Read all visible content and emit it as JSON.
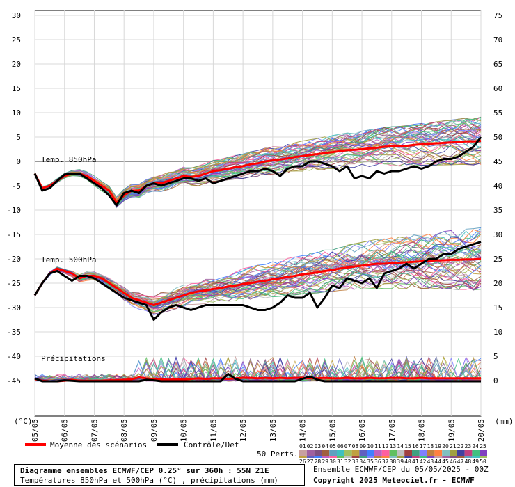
{
  "chart_data": {
    "type": "line",
    "title": "Diagramme ensembles ECMWF/CEP 0.25° sur 360h : 55N 21E",
    "subtitle": "Températures 850hPa et 500hPa (°C) , précipitations (mm)",
    "run": "Ensemble ECMWF/CEP du 05/05/2025 - 00Z",
    "copyright": "Copyright 2025 Meteociel.fr - ECMWF",
    "left_unit": "(°C)",
    "right_unit": "(mm)",
    "x_dates": [
      "05/05",
      "06/05",
      "07/05",
      "08/05",
      "09/05",
      "10/05",
      "11/05",
      "12/05",
      "13/05",
      "14/05",
      "15/05",
      "16/05",
      "17/05",
      "18/05",
      "19/05",
      "20/05"
    ],
    "x_range_hours": [
      0,
      360
    ],
    "left_axis": {
      "range": [
        -45,
        30
      ],
      "ticks": [
        30,
        25,
        20,
        15,
        10,
        5,
        0,
        -5,
        -10,
        -15,
        -20,
        -25,
        -30,
        -35,
        -40,
        -45
      ]
    },
    "right_axis": {
      "ticks": [
        75,
        70,
        65,
        60,
        55,
        50,
        45,
        40,
        35,
        30,
        25,
        20,
        15,
        10,
        5,
        0
      ]
    },
    "grid": true,
    "panel_labels": [
      "Temp. 850hPa",
      "Temp. 500hPa",
      "Précipitations"
    ],
    "legend": {
      "mean_label": "Moyenne des scénarios",
      "control_label": "Contrôle/Det",
      "members_label": "50 Perts.",
      "member_numbers_top": [
        "01",
        "02",
        "03",
        "04",
        "05",
        "06",
        "07",
        "08",
        "09",
        "10",
        "11",
        "12",
        "13",
        "14",
        "15",
        "16",
        "17",
        "18",
        "19",
        "20",
        "21",
        "22",
        "23",
        "24",
        "25"
      ],
      "member_numbers_bottom": [
        "26",
        "27",
        "28",
        "29",
        "30",
        "31",
        "32",
        "33",
        "34",
        "35",
        "36",
        "37",
        "38",
        "39",
        "40",
        "41",
        "42",
        "43",
        "44",
        "45",
        "46",
        "47",
        "48",
        "49",
        "50"
      ]
    },
    "colors": {
      "mean": "#ff0000",
      "control": "#000000",
      "members": [
        "#c8a0a0",
        "#a060a0",
        "#805080",
        "#a06040",
        "#60a0c0",
        "#40c0c0",
        "#a0c060",
        "#c0a040",
        "#6060c0",
        "#4080ff",
        "#c060c0",
        "#ff60a0",
        "#60c060",
        "#c0c0c0",
        "#a04040",
        "#40a080",
        "#8080ff",
        "#c08040",
        "#ff8040",
        "#80c0c0",
        "#a0a040",
        "#4040a0",
        "#c04080",
        "#40c080",
        "#8040c0"
      ]
    },
    "series": [
      {
        "name": "Moyenne des scénarios",
        "panel": "t850",
        "x_hours": [
          0,
          6,
          12,
          18,
          24,
          30,
          36,
          42,
          48,
          54,
          60,
          66,
          72,
          78,
          84,
          90,
          96,
          102,
          108,
          114,
          120,
          126,
          132,
          138,
          144,
          150,
          156,
          162,
          168,
          174,
          180,
          186,
          192,
          198,
          204,
          210,
          216,
          222,
          228,
          234,
          240,
          246,
          252,
          258,
          264,
          270,
          276,
          282,
          288,
          294,
          300,
          306,
          312,
          318,
          324,
          330,
          336,
          342,
          348,
          354,
          360
        ],
        "values": [
          -2.5,
          -5.5,
          -5,
          -4,
          -3,
          -2.5,
          -2.5,
          -3,
          -4,
          -5,
          -6,
          -8.5,
          -7,
          -6,
          -6,
          -5,
          -4.5,
          -4.5,
          -4,
          -3.5,
          -3,
          -3.2,
          -3,
          -2.5,
          -2,
          -1.8,
          -1.5,
          -1.2,
          -1,
          -0.6,
          -0.4,
          0,
          0.2,
          0.4,
          0.6,
          0.9,
          1.1,
          1.3,
          1.5,
          1.7,
          1.9,
          2.1,
          2.3,
          2.4,
          2.5,
          2.7,
          2.8,
          3,
          3.1,
          3.1,
          3.2,
          3.4,
          3.5,
          3.6,
          3.7,
          3.8,
          3.9,
          4,
          4.1,
          4.1,
          4.2
        ]
      },
      {
        "name": "Contrôle/Det",
        "panel": "t850",
        "x_hours": [
          0,
          6,
          12,
          18,
          24,
          30,
          36,
          42,
          48,
          54,
          60,
          66,
          72,
          78,
          84,
          90,
          96,
          102,
          108,
          114,
          120,
          126,
          132,
          138,
          144,
          150,
          156,
          162,
          168,
          174,
          180,
          186,
          192,
          198,
          204,
          210,
          216,
          222,
          228,
          234,
          240,
          246,
          252,
          258,
          264,
          270,
          276,
          282,
          288,
          294,
          300,
          306,
          312,
          318,
          324,
          330,
          336,
          342,
          348,
          354,
          360
        ],
        "values": [
          -2.5,
          -6,
          -5.5,
          -4,
          -2.7,
          -2.5,
          -2.5,
          -3.5,
          -4.5,
          -5.5,
          -7,
          -9,
          -6.5,
          -6,
          -6.5,
          -5,
          -4.5,
          -5,
          -4.5,
          -4,
          -3.5,
          -3.5,
          -4,
          -3.5,
          -4.5,
          -4,
          -3.5,
          -3,
          -2.5,
          -2,
          -2,
          -1.5,
          -2,
          -3,
          -1.5,
          -1,
          -1,
          0,
          0,
          -0.5,
          -1,
          -2,
          -1,
          -3.5,
          -3,
          -3.5,
          -2,
          -2.5,
          -2,
          -2,
          -1.5,
          -1,
          -1.5,
          -1,
          0,
          0.5,
          0.5,
          1,
          2,
          3,
          5
        ]
      },
      {
        "name": "Moyenne des scénarios",
        "panel": "t500",
        "x_hours": [
          0,
          6,
          12,
          18,
          24,
          30,
          36,
          42,
          48,
          54,
          60,
          66,
          72,
          78,
          84,
          90,
          96,
          102,
          108,
          114,
          120,
          126,
          132,
          138,
          144,
          150,
          156,
          162,
          168,
          174,
          180,
          186,
          192,
          198,
          204,
          210,
          216,
          222,
          228,
          234,
          240,
          246,
          252,
          258,
          264,
          270,
          276,
          282,
          288,
          294,
          300,
          306,
          312,
          318,
          324,
          330,
          336,
          342,
          348,
          354,
          360
        ],
        "values": [
          -27.5,
          -25,
          -23,
          -22,
          -22.5,
          -23,
          -24,
          -23.5,
          -23.5,
          -24,
          -25,
          -26,
          -27,
          -28,
          -28.5,
          -29,
          -29.5,
          -29,
          -28.5,
          -28,
          -27.5,
          -27,
          -26.7,
          -26.5,
          -26.2,
          -26,
          -25.7,
          -25.5,
          -25.2,
          -25,
          -24.7,
          -24.5,
          -24.2,
          -24,
          -23.7,
          -23.5,
          -23.2,
          -23,
          -22.8,
          -22.5,
          -22.3,
          -22,
          -21.8,
          -21.6,
          -21.4,
          -21.2,
          -21,
          -21,
          -20.9,
          -20.8,
          -20.7,
          -20.6,
          -20.5,
          -20.4,
          -20.3,
          -20.3,
          -20.2,
          -20.2,
          -20.1,
          -20.1,
          -20
        ]
      },
      {
        "name": "Contrôle/Det",
        "panel": "t500",
        "x_hours": [
          0,
          6,
          12,
          18,
          24,
          30,
          36,
          42,
          48,
          54,
          60,
          66,
          72,
          78,
          84,
          90,
          96,
          102,
          108,
          114,
          120,
          126,
          132,
          138,
          144,
          150,
          156,
          162,
          168,
          174,
          180,
          186,
          192,
          198,
          204,
          210,
          216,
          222,
          228,
          234,
          240,
          246,
          252,
          258,
          264,
          270,
          276,
          282,
          288,
          294,
          300,
          306,
          312,
          318,
          324,
          330,
          336,
          342,
          348,
          354,
          360
        ],
        "values": [
          -27.5,
          -25,
          -23,
          -22.5,
          -23.5,
          -24.5,
          -23.5,
          -23.5,
          -24,
          -25,
          -26,
          -27,
          -28,
          -28.5,
          -29,
          -29.5,
          -32.5,
          -31,
          -30,
          -29.5,
          -30,
          -30.5,
          -30,
          -29.5,
          -29.5,
          -29.5,
          -29.5,
          -29.5,
          -29.5,
          -30,
          -30.5,
          -30.5,
          -30,
          -29,
          -27.5,
          -28,
          -28,
          -27,
          -30,
          -28,
          -25.5,
          -26,
          -24,
          -24.5,
          -25,
          -24,
          -26,
          -23,
          -22.5,
          -22,
          -21,
          -22,
          -21,
          -20,
          -20,
          -19,
          -19,
          -18,
          -17.5,
          -17,
          -16.5
        ]
      },
      {
        "name": "Moyenne des scénarios",
        "panel": "precip",
        "x_hours": [
          0,
          6,
          12,
          18,
          24,
          30,
          36,
          42,
          48,
          54,
          60,
          66,
          72,
          78,
          84,
          90,
          96,
          102,
          108,
          114,
          120,
          126,
          132,
          138,
          144,
          150,
          156,
          162,
          168,
          174,
          180,
          186,
          192,
          198,
          204,
          210,
          216,
          222,
          228,
          234,
          240,
          246,
          252,
          258,
          264,
          270,
          276,
          282,
          288,
          294,
          300,
          306,
          312,
          318,
          324,
          330,
          336,
          342,
          348,
          354,
          360
        ],
        "values": [
          0.5,
          0.1,
          0,
          0,
          0.1,
          0.3,
          0.1,
          0.1,
          0.1,
          0.1,
          0.2,
          0.2,
          0.3,
          0.4,
          0.8,
          0.6,
          0.4,
          0.4,
          0.3,
          0.4,
          0.4,
          0.5,
          0.6,
          0.5,
          0.6,
          0.6,
          0.5,
          0.6,
          0.7,
          0.7,
          0.6,
          0.7,
          0.6,
          0.7,
          0.6,
          0.7,
          0.7,
          0.6,
          0.6,
          0.7,
          0.6,
          0.6,
          0.7,
          0.6,
          0.6,
          0.7,
          0.6,
          0.6,
          0.7,
          0.7,
          0.6,
          0.6,
          0.7,
          0.6,
          0.6,
          0.6,
          0.6,
          0.6,
          0.6,
          0.6,
          0.6
        ]
      },
      {
        "name": "Contrôle/Det",
        "panel": "precip",
        "x_hours": [
          0,
          6,
          12,
          18,
          24,
          30,
          36,
          42,
          48,
          54,
          60,
          66,
          72,
          78,
          84,
          90,
          96,
          102,
          108,
          114,
          120,
          126,
          132,
          138,
          144,
          150,
          156,
          162,
          168,
          174,
          180,
          186,
          192,
          198,
          204,
          210,
          216,
          222,
          228,
          234,
          240,
          246,
          252,
          258,
          264,
          270,
          276,
          282,
          288,
          294,
          300,
          306,
          312,
          318,
          324,
          330,
          336,
          342,
          348,
          354,
          360
        ],
        "values": [
          0.6,
          0,
          0,
          0,
          0.2,
          0.1,
          0,
          0,
          0,
          0,
          0,
          0,
          0,
          0,
          0,
          0.3,
          0.2,
          0,
          0,
          0,
          0,
          0,
          0,
          0,
          0,
          0,
          1.5,
          0.5,
          0,
          0,
          0,
          0,
          0,
          0,
          0,
          0,
          0.5,
          1,
          0.3,
          0,
          0,
          0,
          0,
          0,
          0,
          0,
          0,
          0,
          0,
          0,
          0,
          0,
          0,
          0,
          0,
          0,
          0,
          0,
          0,
          0,
          0
        ]
      }
    ]
  }
}
